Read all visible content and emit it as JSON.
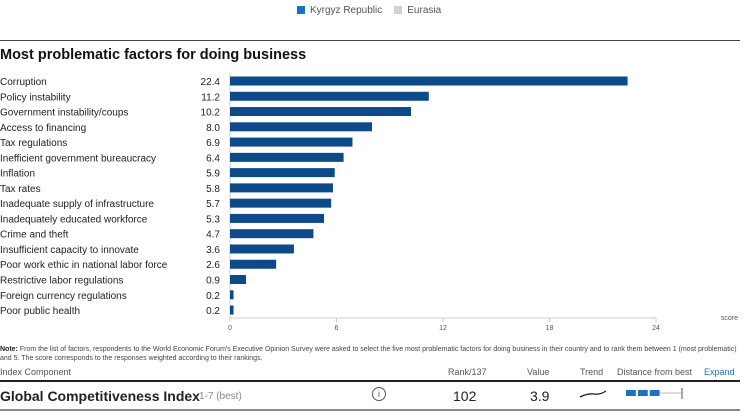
{
  "legend": [
    {
      "label": "Kyrgyz Republic",
      "color": "#1a73c0"
    },
    {
      "label": "Eurasia",
      "color": "#d3d3d3"
    }
  ],
  "chart_data": {
    "type": "bar",
    "orientation": "horizontal",
    "title": "Most problematic factors for doing business",
    "categories": [
      "Corruption",
      "Policy instability",
      "Government instability/coups",
      "Access to financing",
      "Tax regulations",
      "Inefficient government bureaucracy",
      "Inflation",
      "Tax rates",
      "Inadequate supply of infrastructure",
      "Inadequately educated workforce",
      "Crime and theft",
      "Insufficient capacity to innovate",
      "Poor work ethic in national labor force",
      "Restrictive labor regulations",
      "Foreign currency regulations",
      "Poor public health"
    ],
    "values": [
      22.4,
      11.2,
      10.2,
      8.0,
      6.9,
      6.4,
      5.9,
      5.8,
      5.7,
      5.3,
      4.7,
      3.6,
      2.6,
      0.9,
      0.2,
      0.2
    ],
    "value_labels": [
      "22.4",
      "11.2",
      "10.2",
      "8.0",
      "6.9",
      "6.4",
      "5.9",
      "5.8",
      "5.7",
      "5.3",
      "4.7",
      "3.6",
      "2.6",
      "0.9",
      "0.2",
      "0.2"
    ],
    "xlabel": "score",
    "xlim": [
      0,
      24
    ],
    "xticks": [
      "0",
      "6",
      "12",
      "18",
      "24"
    ],
    "bar_color": "#0d4a8a",
    "grid": false
  },
  "note": {
    "bold": "Note:",
    "text": " From the list of factors, respondents to the World Economic Forum's Executive Opinion Survey were asked to select the five most problematic factors for doing business in their country and to rank them between 1 (most problematic) and 5. The score corresponds to the responses weighted according to their rankings."
  },
  "table": {
    "headers": {
      "component": "Index Component",
      "rank": "Rank/137",
      "value": "Value",
      "trend": "Trend",
      "distance": "Distance from best",
      "expand": "Expand"
    },
    "row": {
      "name": "Global Competitiveness Index",
      "scale": "1-7 (best)",
      "rank": "102",
      "value": "3.9",
      "distance_filled": 0.6
    }
  }
}
